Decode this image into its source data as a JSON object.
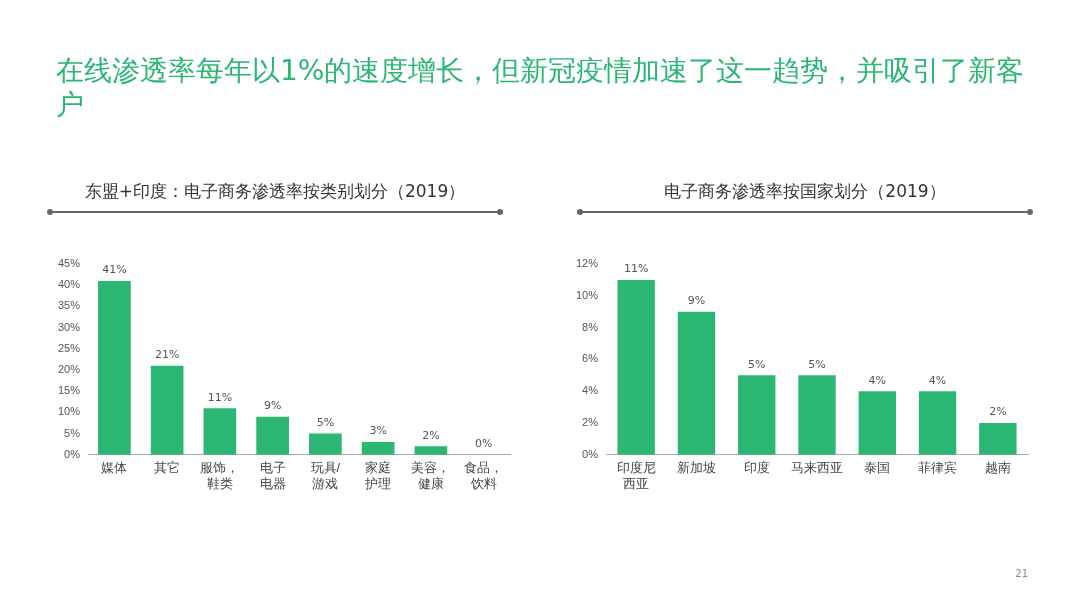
{
  "chart_data": [
    {
      "type": "bar",
      "title": "在线渗透率每年以1%的速度增长，但新冠疫情加速了这一趋势，并吸引了新客户",
      "subtitle": "东盟+印度：电子商务渗透率按类别划分（2019）",
      "categories": [
        "媒体",
        "其它",
        "服饰，鞋类",
        "电子电器",
        "玩具/游戏",
        "家庭护理",
        "美容，健康",
        "食品，饮料"
      ],
      "values": [
        41,
        21,
        11,
        9,
        5,
        3,
        2,
        0
      ],
      "value_labels": [
        "41%",
        "21%",
        "11%",
        "9%",
        "5%",
        "3%",
        "2%",
        "0%"
      ],
      "color": "#2bb673",
      "ylim": [
        0,
        45
      ],
      "yticks": [
        {
          "value": 0,
          "label": "0%"
        },
        {
          "value": 5,
          "label": "5%"
        },
        {
          "value": 10,
          "label": "10%"
        },
        {
          "value": 15,
          "label": "15%"
        },
        {
          "value": 20,
          "label": "20%"
        },
        {
          "value": 25,
          "label": "25%"
        },
        {
          "value": 30,
          "label": "30%"
        },
        {
          "value": 35,
          "label": "35%"
        },
        {
          "value": 40,
          "label": "40%"
        },
        {
          "value": 45,
          "label": "45%"
        }
      ],
      "grid": false
    },
    {
      "type": "bar",
      "title": "电子商务渗透率按国家划分（2019）",
      "categories": [
        "印度尼西亚",
        "新加坡",
        "印度",
        "马来西亚",
        "泰国",
        "菲律宾",
        "越南"
      ],
      "values": [
        11,
        9,
        5,
        5,
        4,
        4,
        2
      ],
      "value_labels": [
        "11%",
        "9%",
        "5%",
        "5%",
        "4%",
        "4%",
        "2%"
      ],
      "color": "#2bb673",
      "ylim": [
        0,
        12
      ],
      "yticks": [
        {
          "value": 0,
          "label": "0%"
        },
        {
          "value": 2,
          "label": "2%"
        },
        {
          "value": 4,
          "label": "4%"
        },
        {
          "value": 6,
          "label": "6%"
        },
        {
          "value": 8,
          "label": "8%"
        },
        {
          "value": 10,
          "label": "10%"
        },
        {
          "value": 12,
          "label": "12%"
        }
      ],
      "grid": false,
      "annotations": [
        "21"
      ]
    }
  ]
}
